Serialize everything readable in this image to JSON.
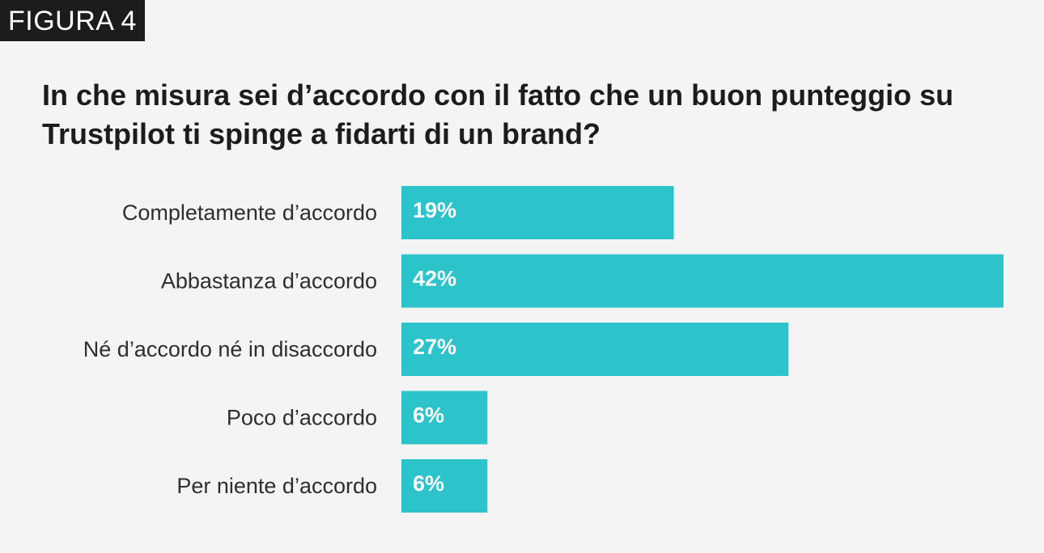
{
  "figure_tag": "FIGURA 4",
  "colors": {
    "background": "#f4f4f4",
    "bar": "#2cc3cb",
    "title": "#1c1c1c",
    "tag_background": "#1c1c1c"
  },
  "chart_data": {
    "type": "bar",
    "orientation": "horizontal",
    "title": "In che misura sei d’accordo con il fatto che un buon punteggio su Trustpilot ti spinge a fidarti di un brand?",
    "categories": [
      "Completamente d’accordo",
      "Abbastanza d’accordo",
      "Né d’accordo né in disaccordo",
      "Poco d’accordo",
      "Per niente d’accordo"
    ],
    "values": [
      19,
      42,
      27,
      6,
      6
    ],
    "value_labels": [
      "19%",
      "42%",
      "27%",
      "6%",
      "6%"
    ],
    "unit": "%",
    "xlim": [
      0,
      42
    ],
    "grid": false
  }
}
